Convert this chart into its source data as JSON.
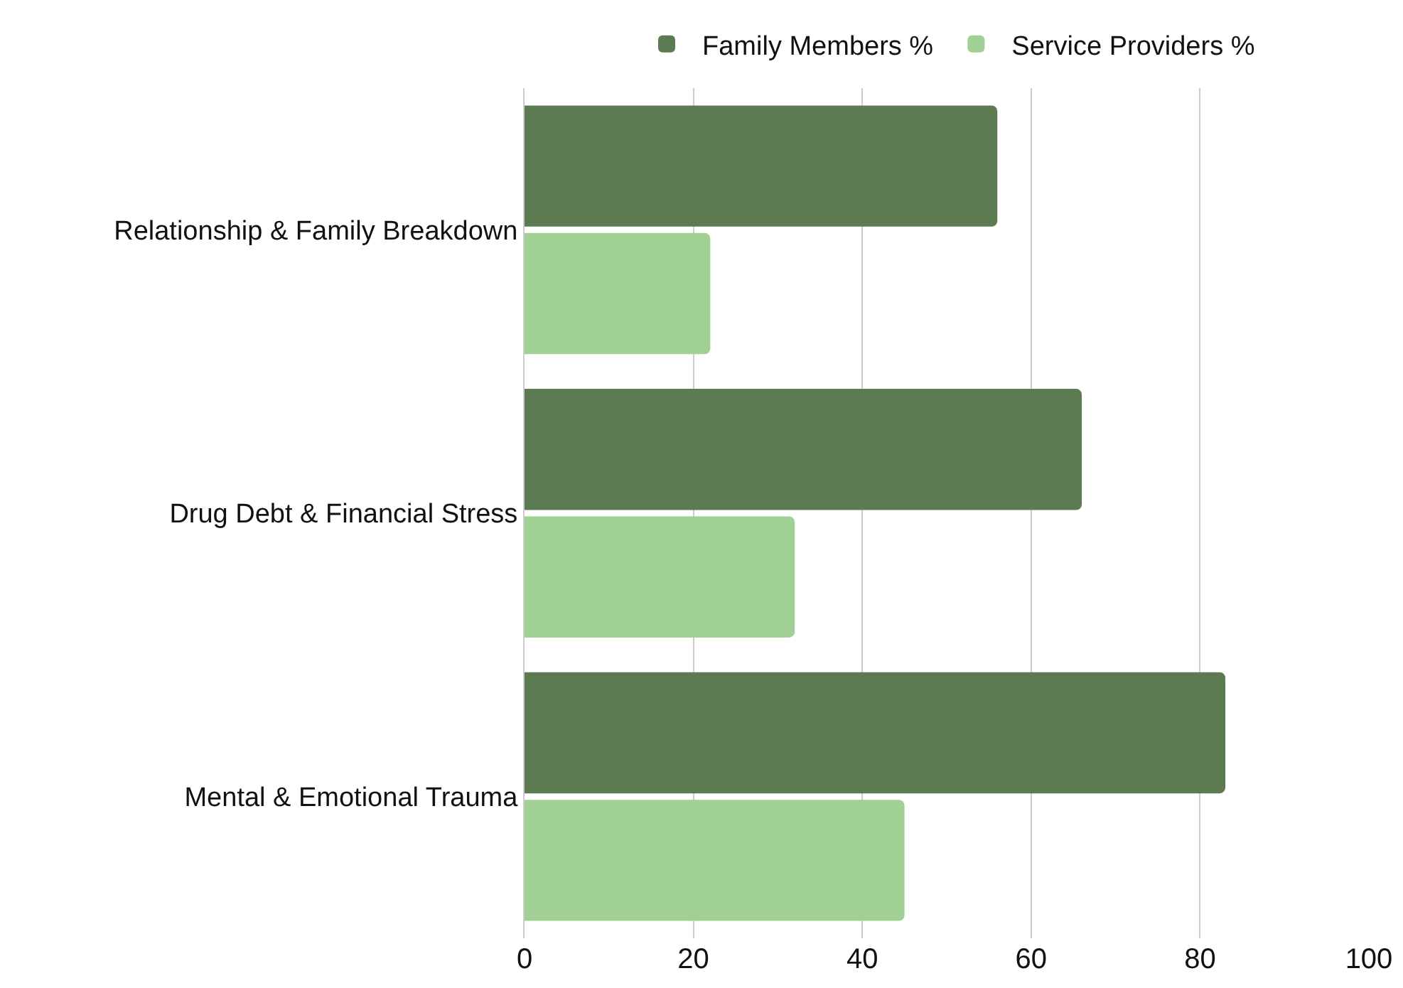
{
  "chart_data": {
    "type": "bar",
    "orientation": "horizontal",
    "categories": [
      "Relationship & Family Breakdown",
      "Drug Debt & Financial Stress",
      "Mental & Emotional Trauma"
    ],
    "series": [
      {
        "name": "Family Members %",
        "color": "#5c7b52",
        "values": [
          56,
          66,
          83
        ]
      },
      {
        "name": "Service Providers %",
        "color": "#a0d093",
        "values": [
          22,
          32,
          45
        ]
      }
    ],
    "xlim": [
      0,
      100
    ],
    "xticks": [
      0,
      20,
      40,
      60,
      80,
      100
    ],
    "grid": "x",
    "legend": "top"
  }
}
